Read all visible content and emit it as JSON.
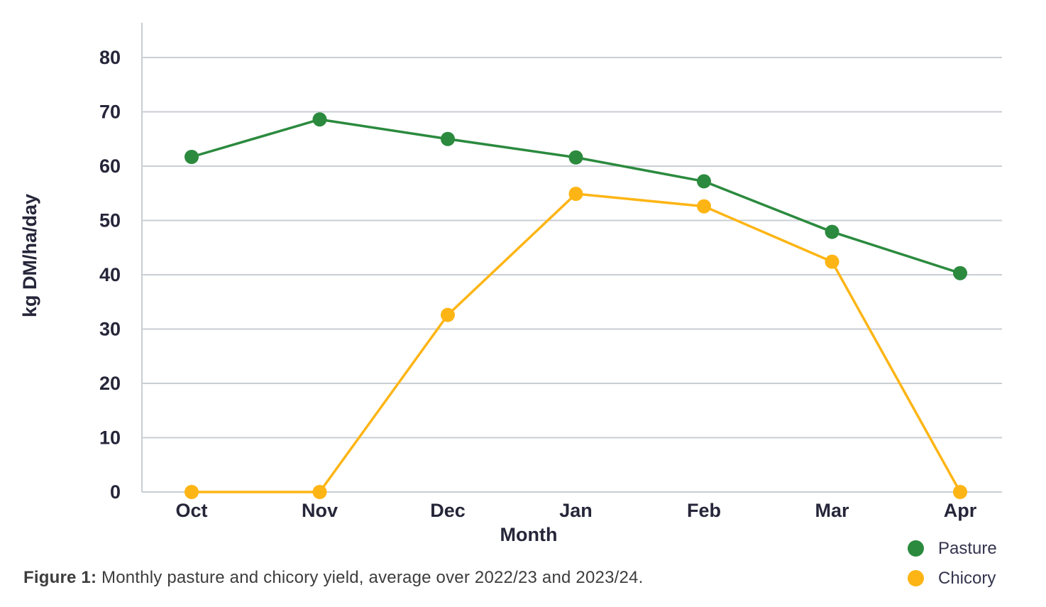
{
  "chart_data": {
    "type": "line",
    "title": "",
    "categories": [
      "Oct",
      "Nov",
      "Dec",
      "Jan",
      "Feb",
      "Mar",
      "Apr"
    ],
    "series": [
      {
        "name": "Pasture",
        "color": "#2B8A3E",
        "values": [
          61.7,
          68.6,
          65.0,
          61.6,
          57.2,
          47.9,
          40.3
        ]
      },
      {
        "name": "Chicory",
        "color": "#FDB515",
        "values": [
          0,
          0,
          32.6,
          54.9,
          52.6,
          42.4,
          0
        ]
      }
    ],
    "xlabel": "Month",
    "ylabel": "kg DM/ha/day",
    "ylim": [
      0,
      80
    ],
    "y_ticks": [
      0,
      10,
      20,
      30,
      40,
      50,
      60,
      70,
      80
    ],
    "grid": "horizontal",
    "legend_position": "bottom-right",
    "marker": "circle"
  },
  "caption": {
    "prefix": "Figure 1:",
    "text": " Monthly pasture and chicory yield, average over 2022/23 and 2023/24."
  },
  "colors": {
    "grid": "#C8CED4",
    "axis": "#C8CED4",
    "tick_text": "#26263A",
    "axis_title_text": "#26263A",
    "legend_text": "#34344E",
    "caption_text": "#3D3D3D"
  }
}
